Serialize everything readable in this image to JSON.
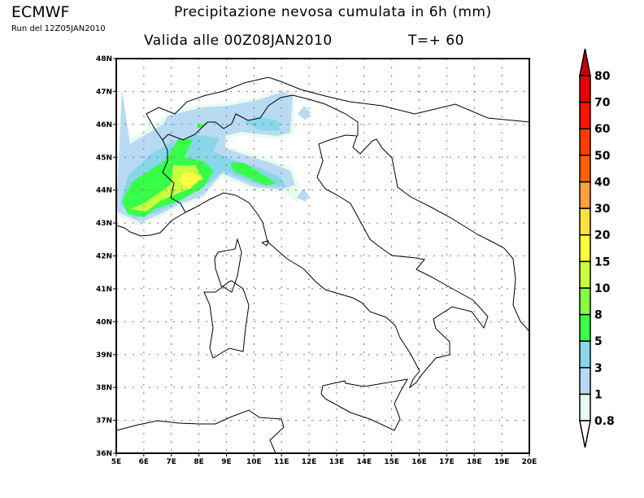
{
  "header": {
    "brand": "ECMWF",
    "run": "Run del 12Z05JAN2010",
    "title": "Precipitazione nevosa cumulata in 6h (mm)",
    "valid": "Valida alle 00Z08JAN2010",
    "step": "T=+ 60"
  },
  "map": {
    "lon_range": [
      5,
      20
    ],
    "lat_range": [
      36,
      48
    ],
    "lon_labels": [
      "5E",
      "6E",
      "7E",
      "8E",
      "9E",
      "10E",
      "11E",
      "12E",
      "13E",
      "14E",
      "15E",
      "16E",
      "17E",
      "18E",
      "19E",
      "20E"
    ],
    "lat_labels": [
      "36N",
      "37N",
      "38N",
      "39N",
      "40N",
      "41N",
      "42N",
      "43N",
      "44N",
      "45N",
      "46N",
      "47N",
      "48N"
    ],
    "grid": "dotted every 1 degree"
  },
  "legend": {
    "levels": [
      "0.8",
      "1",
      "3",
      "5",
      "8",
      "10",
      "15",
      "20",
      "30",
      "40",
      "50",
      "60",
      "70",
      "80"
    ],
    "colors": [
      "#e8fbef",
      "#b8daf2",
      "#88d6ea",
      "#38ff48",
      "#88ff44",
      "#c8ff40",
      "#ffff40",
      "#ffe040",
      "#ffa040",
      "#ff6000",
      "#ff3c00",
      "#ff1400",
      "#e80000"
    ],
    "over_color": "#c80000",
    "under_color": "#ffffff"
  }
}
